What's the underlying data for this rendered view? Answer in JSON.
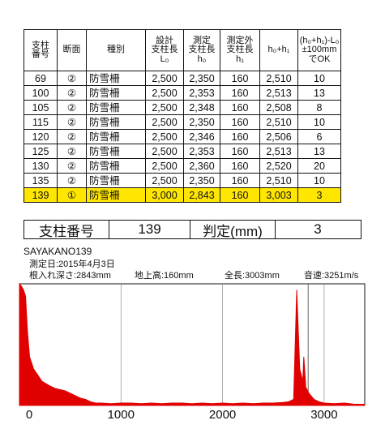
{
  "table": {
    "headers": [
      "支柱\n番号",
      "断面",
      "種別",
      "設計\n支柱長\nL₀",
      "測定\n支柱長\nh₀",
      "測定外\n支柱長\nh₁",
      "h₀+h₁",
      "(h₀+h₁)-L₀\n±100mm\nでOK"
    ],
    "rows": [
      [
        "69",
        "②",
        "防雪柵",
        "2,500",
        "2,350",
        "160",
        "2,510",
        "10"
      ],
      [
        "100",
        "②",
        "防雪柵",
        "2,500",
        "2,353",
        "160",
        "2,513",
        "13"
      ],
      [
        "105",
        "②",
        "防雪柵",
        "2,500",
        "2,348",
        "160",
        "2,508",
        "8"
      ],
      [
        "115",
        "②",
        "防雪柵",
        "2,500",
        "2,350",
        "160",
        "2,510",
        "10"
      ],
      [
        "120",
        "②",
        "防雪柵",
        "2,500",
        "2,346",
        "160",
        "2,506",
        "6"
      ],
      [
        "125",
        "②",
        "防雪柵",
        "2,500",
        "2,353",
        "160",
        "2,513",
        "13"
      ],
      [
        "130",
        "②",
        "防雪柵",
        "2,500",
        "2,360",
        "160",
        "2,520",
        "20"
      ],
      [
        "135",
        "②",
        "防雪柵",
        "2,500",
        "2,350",
        "160",
        "2,510",
        "10"
      ],
      [
        "139",
        "①",
        "防雪柵",
        "3,000",
        "2,843",
        "160",
        "3,003",
        "3"
      ]
    ],
    "highlight_row_index": 8,
    "highlight_color": "#ffe600"
  },
  "judgement": {
    "pole_label": "支柱番号",
    "pole_value": "139",
    "judge_label": "判定(mm)",
    "judge_value": "3"
  },
  "meta": {
    "file": "SAYAKANO139",
    "date": "測定日:2015年4月3日",
    "depth": "根入れ深さ:2843mm",
    "above": "地上高:160mm",
    "total": "全長:3003mm",
    "speed": "音速:3251m/s"
  },
  "chart_data": {
    "type": "area",
    "title": "",
    "xlabel": "",
    "ylabel": "",
    "xlim": [
      0,
      3400
    ],
    "x_ticks": [
      0,
      1000,
      2000,
      3000
    ],
    "grid": "vertical lines at x ticks and at marker",
    "marker_x": 2843,
    "color": "#e00000",
    "series": [
      {
        "x": [
          0,
          20,
          40,
          60,
          80,
          100,
          140,
          180,
          220,
          260,
          300,
          350,
          400,
          450,
          500,
          550,
          600,
          650,
          700,
          750,
          800,
          900,
          1000,
          1100,
          1200,
          1300,
          1400,
          1500,
          1600,
          1700,
          1800,
          1900,
          2000,
          2100,
          2200,
          2300,
          2400,
          2500,
          2600,
          2650,
          2700,
          2730,
          2760,
          2790,
          2800,
          2820,
          2850,
          2900,
          2950,
          3000,
          3100,
          3200,
          3300,
          3400
        ],
        "values": [
          1.0,
          0.98,
          0.95,
          0.9,
          0.6,
          0.4,
          0.3,
          0.25,
          0.2,
          0.18,
          0.16,
          0.14,
          0.13,
          0.12,
          0.1,
          0.08,
          0.06,
          0.05,
          0.03,
          0.02,
          0.02,
          0.015,
          0.02,
          0.02,
          0.015,
          0.02,
          0.015,
          0.02,
          0.02,
          0.015,
          0.02,
          0.015,
          0.02,
          0.015,
          0.02,
          0.015,
          0.02,
          0.02,
          0.025,
          0.03,
          0.05,
          0.95,
          0.3,
          0.2,
          0.4,
          0.15,
          0.1,
          0.05,
          0.03,
          0.02,
          0.015,
          0.02,
          0.01,
          0.01
        ]
      }
    ]
  }
}
